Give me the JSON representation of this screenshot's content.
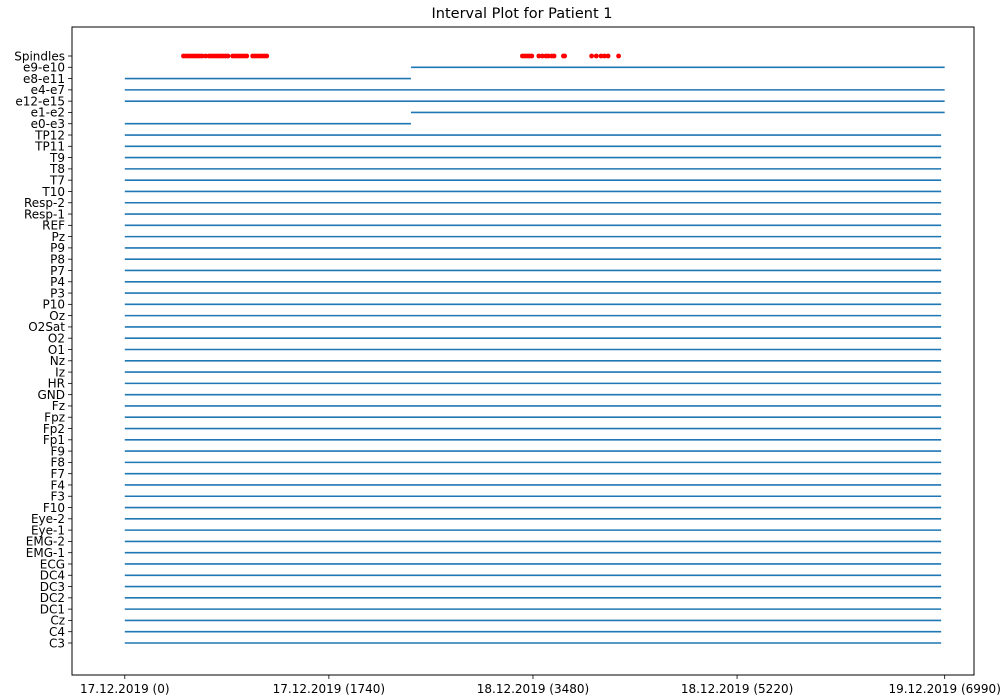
{
  "chart_data": {
    "type": "interval",
    "title": "Interval Plot for Patient 1",
    "xlabel": "",
    "ylabel": "",
    "x_ticks": [
      {
        "value": 0,
        "label": "17.12.2019 (0)"
      },
      {
        "value": 1740,
        "label": "17.12.2019 (1740)"
      },
      {
        "value": 3480,
        "label": "18.12.2019 (3480)"
      },
      {
        "value": 5220,
        "label": "18.12.2019 (5220)"
      },
      {
        "value": 6990,
        "label": "19.12.2019 (6990)"
      }
    ],
    "xlim": [
      -450,
      7240
    ],
    "grid": false,
    "interval_color": "#1f77b4",
    "spindle_color": "#ff0000",
    "channels": [
      {
        "name": "C3",
        "intervals": [
          [
            0,
            6960
          ]
        ]
      },
      {
        "name": "C4",
        "intervals": [
          [
            0,
            6960
          ]
        ]
      },
      {
        "name": "Cz",
        "intervals": [
          [
            0,
            6960
          ]
        ]
      },
      {
        "name": "DC1",
        "intervals": [
          [
            0,
            6960
          ]
        ]
      },
      {
        "name": "DC2",
        "intervals": [
          [
            0,
            6960
          ]
        ]
      },
      {
        "name": "DC3",
        "intervals": [
          [
            0,
            6960
          ]
        ]
      },
      {
        "name": "DC4",
        "intervals": [
          [
            0,
            6960
          ]
        ]
      },
      {
        "name": "ECG",
        "intervals": [
          [
            0,
            6960
          ]
        ]
      },
      {
        "name": "EMG-1",
        "intervals": [
          [
            0,
            6960
          ]
        ]
      },
      {
        "name": "EMG-2",
        "intervals": [
          [
            0,
            6960
          ]
        ]
      },
      {
        "name": "Eye-1",
        "intervals": [
          [
            0,
            6960
          ]
        ]
      },
      {
        "name": "Eye-2",
        "intervals": [
          [
            0,
            6960
          ]
        ]
      },
      {
        "name": "F10",
        "intervals": [
          [
            0,
            6960
          ]
        ]
      },
      {
        "name": "F3",
        "intervals": [
          [
            0,
            6960
          ]
        ]
      },
      {
        "name": "F4",
        "intervals": [
          [
            0,
            6960
          ]
        ]
      },
      {
        "name": "F7",
        "intervals": [
          [
            0,
            6960
          ]
        ]
      },
      {
        "name": "F8",
        "intervals": [
          [
            0,
            6960
          ]
        ]
      },
      {
        "name": "F9",
        "intervals": [
          [
            0,
            6960
          ]
        ]
      },
      {
        "name": "Fp1",
        "intervals": [
          [
            0,
            6960
          ]
        ]
      },
      {
        "name": "Fp2",
        "intervals": [
          [
            0,
            6960
          ]
        ]
      },
      {
        "name": "Fpz",
        "intervals": [
          [
            0,
            6960
          ]
        ]
      },
      {
        "name": "Fz",
        "intervals": [
          [
            0,
            6960
          ]
        ]
      },
      {
        "name": "GND",
        "intervals": [
          [
            0,
            6960
          ]
        ]
      },
      {
        "name": "HR",
        "intervals": [
          [
            0,
            6960
          ]
        ]
      },
      {
        "name": "Iz",
        "intervals": [
          [
            0,
            6960
          ]
        ]
      },
      {
        "name": "Nz",
        "intervals": [
          [
            0,
            6960
          ]
        ]
      },
      {
        "name": "O1",
        "intervals": [
          [
            0,
            6960
          ]
        ]
      },
      {
        "name": "O2",
        "intervals": [
          [
            0,
            6960
          ]
        ]
      },
      {
        "name": "O2Sat",
        "intervals": [
          [
            0,
            6960
          ]
        ]
      },
      {
        "name": "Oz",
        "intervals": [
          [
            0,
            6960
          ]
        ]
      },
      {
        "name": "P10",
        "intervals": [
          [
            0,
            6960
          ]
        ]
      },
      {
        "name": "P3",
        "intervals": [
          [
            0,
            6960
          ]
        ]
      },
      {
        "name": "P4",
        "intervals": [
          [
            0,
            6960
          ]
        ]
      },
      {
        "name": "P7",
        "intervals": [
          [
            0,
            6960
          ]
        ]
      },
      {
        "name": "P8",
        "intervals": [
          [
            0,
            6960
          ]
        ]
      },
      {
        "name": "P9",
        "intervals": [
          [
            0,
            6960
          ]
        ]
      },
      {
        "name": "Pz",
        "intervals": [
          [
            0,
            6960
          ]
        ]
      },
      {
        "name": "REF",
        "intervals": [
          [
            0,
            6960
          ]
        ]
      },
      {
        "name": "Resp-1",
        "intervals": [
          [
            0,
            6960
          ]
        ]
      },
      {
        "name": "Resp-2",
        "intervals": [
          [
            0,
            6960
          ]
        ]
      },
      {
        "name": "T10",
        "intervals": [
          [
            0,
            6960
          ]
        ]
      },
      {
        "name": "T7",
        "intervals": [
          [
            0,
            6960
          ]
        ]
      },
      {
        "name": "T8",
        "intervals": [
          [
            0,
            6960
          ]
        ]
      },
      {
        "name": "T9",
        "intervals": [
          [
            0,
            6960
          ]
        ]
      },
      {
        "name": "TP11",
        "intervals": [
          [
            0,
            6960
          ]
        ]
      },
      {
        "name": "TP12",
        "intervals": [
          [
            0,
            6960
          ]
        ]
      },
      {
        "name": "e0-e3",
        "intervals": [
          [
            0,
            2440
          ]
        ]
      },
      {
        "name": "e1-e2",
        "intervals": [
          [
            2440,
            6990
          ]
        ]
      },
      {
        "name": "e12-e15",
        "intervals": [
          [
            0,
            6990
          ]
        ]
      },
      {
        "name": "e4-e7",
        "intervals": [
          [
            0,
            6990
          ]
        ]
      },
      {
        "name": "e8-e11",
        "intervals": [
          [
            0,
            2440
          ]
        ]
      },
      {
        "name": "e9-e10",
        "intervals": [
          [
            2440,
            6990
          ]
        ]
      }
    ],
    "spindles": {
      "name": "Spindles",
      "times": [
        500,
        520,
        540,
        560,
        580,
        600,
        620,
        640,
        660,
        690,
        720,
        740,
        760,
        780,
        800,
        820,
        840,
        860,
        880,
        920,
        940,
        960,
        980,
        1000,
        1020,
        1040,
        1090,
        1110,
        1130,
        1150,
        1170,
        1190,
        1210,
        3390,
        3410,
        3430,
        3450,
        3470,
        3530,
        3560,
        3590,
        3610,
        3640,
        3660,
        3740,
        3750,
        3980,
        4020,
        4060,
        4090,
        4120,
        4210
      ]
    }
  }
}
